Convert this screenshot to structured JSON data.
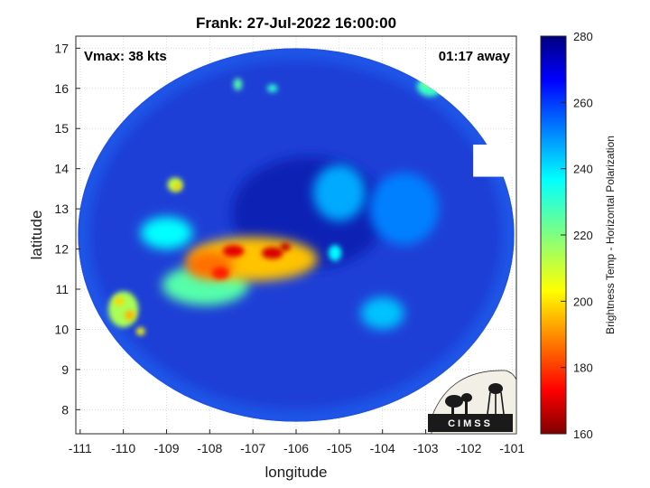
{
  "title": "Frank: 27-Jul-2022 16:00:00",
  "annotations": {
    "vmax": "Vmax: 38 kts",
    "timing": "01:17 away"
  },
  "axes": {
    "xlabel": "longitude",
    "ylabel": "latitude",
    "xlim": [
      -111.1,
      -100.9
    ],
    "ylim": [
      7.4,
      17.3
    ],
    "xticks": [
      -111,
      -110,
      -109,
      -108,
      -107,
      -106,
      -105,
      -104,
      -103,
      -102,
      -101
    ],
    "yticks": [
      8,
      9,
      10,
      11,
      12,
      13,
      14,
      15,
      16,
      17
    ]
  },
  "colorbar": {
    "label": "Brightness Temp - Horizontal Polarization",
    "min": 160,
    "max": 280,
    "ticks": [
      160,
      180,
      200,
      220,
      240,
      260,
      280
    ],
    "colormap": "jet"
  },
  "swath": {
    "center": [
      -106,
      12.35
    ],
    "radius_deg_lon": 5.05,
    "radius_deg_lat": 4.65,
    "clip_east_lon": -101.9
  },
  "features": [
    {
      "lon": -107.0,
      "lat": 11.75,
      "rx": 1.5,
      "ry": 0.55,
      "tb": 198
    },
    {
      "lon": -108.0,
      "lat": 11.6,
      "rx": 0.55,
      "ry": 0.35,
      "tb": 188
    },
    {
      "lon": -107.45,
      "lat": 11.95,
      "rx": 0.25,
      "ry": 0.15,
      "tb": 172
    },
    {
      "lon": -106.55,
      "lat": 11.9,
      "rx": 0.25,
      "ry": 0.15,
      "tb": 170
    },
    {
      "lon": -106.25,
      "lat": 12.05,
      "rx": 0.12,
      "ry": 0.1,
      "tb": 168
    },
    {
      "lon": -107.75,
      "lat": 11.4,
      "rx": 0.2,
      "ry": 0.15,
      "tb": 178
    },
    {
      "lon": -108.1,
      "lat": 11.1,
      "rx": 1.0,
      "ry": 0.5,
      "tb": 225
    },
    {
      "lon": -110.0,
      "lat": 10.5,
      "rx": 0.35,
      "ry": 0.45,
      "tb": 215
    },
    {
      "lon": -109.85,
      "lat": 10.35,
      "rx": 0.12,
      "ry": 0.12,
      "tb": 196
    },
    {
      "lon": -110.1,
      "lat": 10.7,
      "rx": 0.12,
      "ry": 0.1,
      "tb": 200
    },
    {
      "lon": -109.6,
      "lat": 9.95,
      "rx": 0.1,
      "ry": 0.1,
      "tb": 205
    },
    {
      "lon": -108.8,
      "lat": 13.6,
      "rx": 0.18,
      "ry": 0.18,
      "tb": 212
    },
    {
      "lon": -108.75,
      "lat": 13.55,
      "rx": 0.08,
      "ry": 0.08,
      "tb": 198
    },
    {
      "lon": -107.35,
      "lat": 16.1,
      "rx": 0.1,
      "ry": 0.15,
      "tb": 225
    },
    {
      "lon": -106.55,
      "lat": 16.0,
      "rx": 0.12,
      "ry": 0.1,
      "tb": 230
    },
    {
      "lon": -102.9,
      "lat": 16.05,
      "rx": 0.3,
      "ry": 0.25,
      "tb": 228
    },
    {
      "lon": -102.95,
      "lat": 16.15,
      "rx": 0.08,
      "ry": 0.08,
      "tb": 205
    },
    {
      "lon": -105.1,
      "lat": 11.9,
      "rx": 0.15,
      "ry": 0.2,
      "tb": 235
    },
    {
      "lon": -104.0,
      "lat": 10.4,
      "rx": 0.5,
      "ry": 0.4,
      "tb": 242
    },
    {
      "lon": -105.0,
      "lat": 13.4,
      "rx": 0.6,
      "ry": 0.7,
      "tb": 245
    },
    {
      "lon": -103.5,
      "lat": 13.0,
      "rx": 0.8,
      "ry": 0.9,
      "tb": 250
    },
    {
      "lon": -109.0,
      "lat": 12.4,
      "rx": 0.6,
      "ry": 0.4,
      "tb": 235
    }
  ],
  "logo": {
    "text": "CIMSS"
  }
}
